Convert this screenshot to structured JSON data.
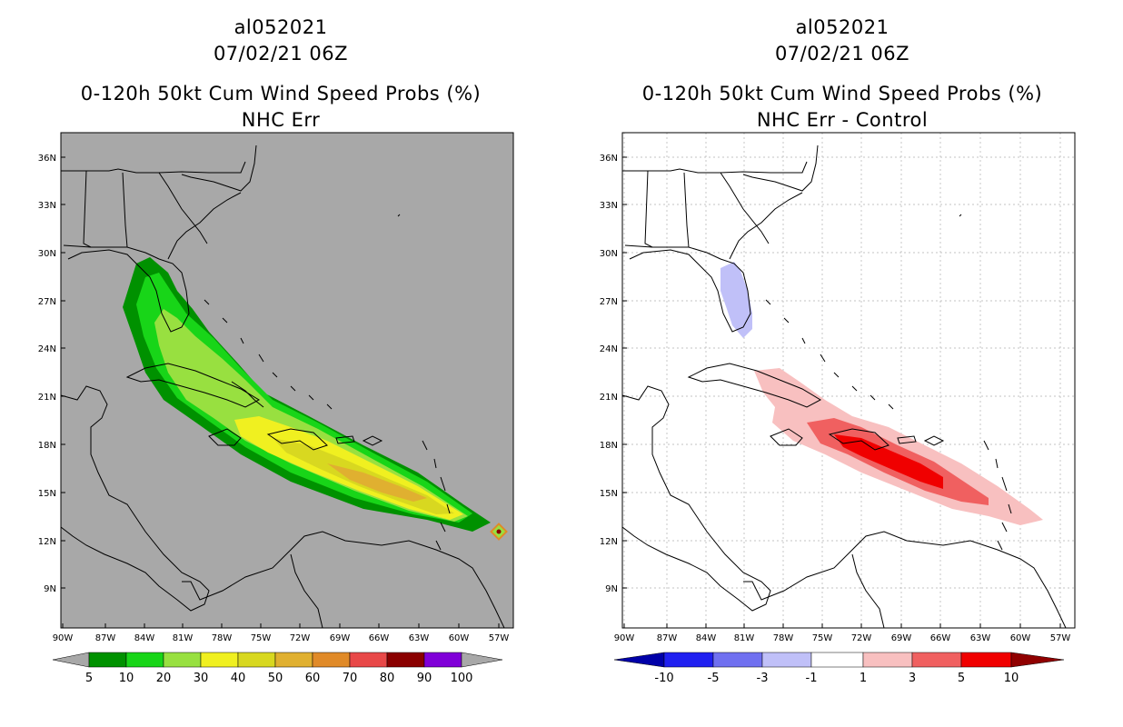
{
  "colors": {
    "land_background_left": "#a8a8a8",
    "ocean_background_right": "#ffffff",
    "coastline": "#000000",
    "gridline": "#b0b0b0"
  },
  "panels": [
    {
      "storm_id": "al052021",
      "datetime": "07/02/21 06Z",
      "product": "0-120h 50kt Cum Wind Speed Probs (%)",
      "subtitle": "NHC Err",
      "lon_ticks": [
        "90W",
        "87W",
        "84W",
        "81W",
        "78W",
        "75W",
        "72W",
        "69W",
        "66W",
        "63W",
        "60W",
        "57W"
      ],
      "lat_ticks": [
        "36N",
        "33N",
        "30N",
        "27N",
        "24N",
        "21N",
        "18N",
        "15N",
        "12N",
        "9N"
      ],
      "colorbar": {
        "labels": [
          "5",
          "10",
          "20",
          "30",
          "40",
          "50",
          "60",
          "70",
          "80",
          "90",
          "100"
        ],
        "colors": [
          "#009100",
          "#18d518",
          "#98e040",
          "#f0f020",
          "#d8d820",
          "#e0b030",
          "#e08a28",
          "#e84848",
          "#8a0000",
          "#8000d8"
        ]
      }
    },
    {
      "storm_id": "al052021",
      "datetime": "07/02/21 06Z",
      "product": "0-120h 50kt Cum Wind Speed Probs (%)",
      "subtitle": "NHC Err - Control",
      "lon_ticks": [
        "90W",
        "87W",
        "84W",
        "81W",
        "78W",
        "75W",
        "72W",
        "69W",
        "66W",
        "63W",
        "60W",
        "57W"
      ],
      "lat_ticks": [
        "36N",
        "33N",
        "30N",
        "27N",
        "24N",
        "21N",
        "18N",
        "15N",
        "12N",
        "9N"
      ],
      "colorbar": {
        "labels": [
          "-10",
          "-5",
          "-3",
          "-1",
          "1",
          "3",
          "5",
          "10"
        ],
        "colors": [
          "#0000a8",
          "#2020f0",
          "#7070f0",
          "#c0c0f8",
          "#ffffff",
          "#f8c0c0",
          "#f06060",
          "#f00000",
          "#900000"
        ]
      }
    }
  ]
}
